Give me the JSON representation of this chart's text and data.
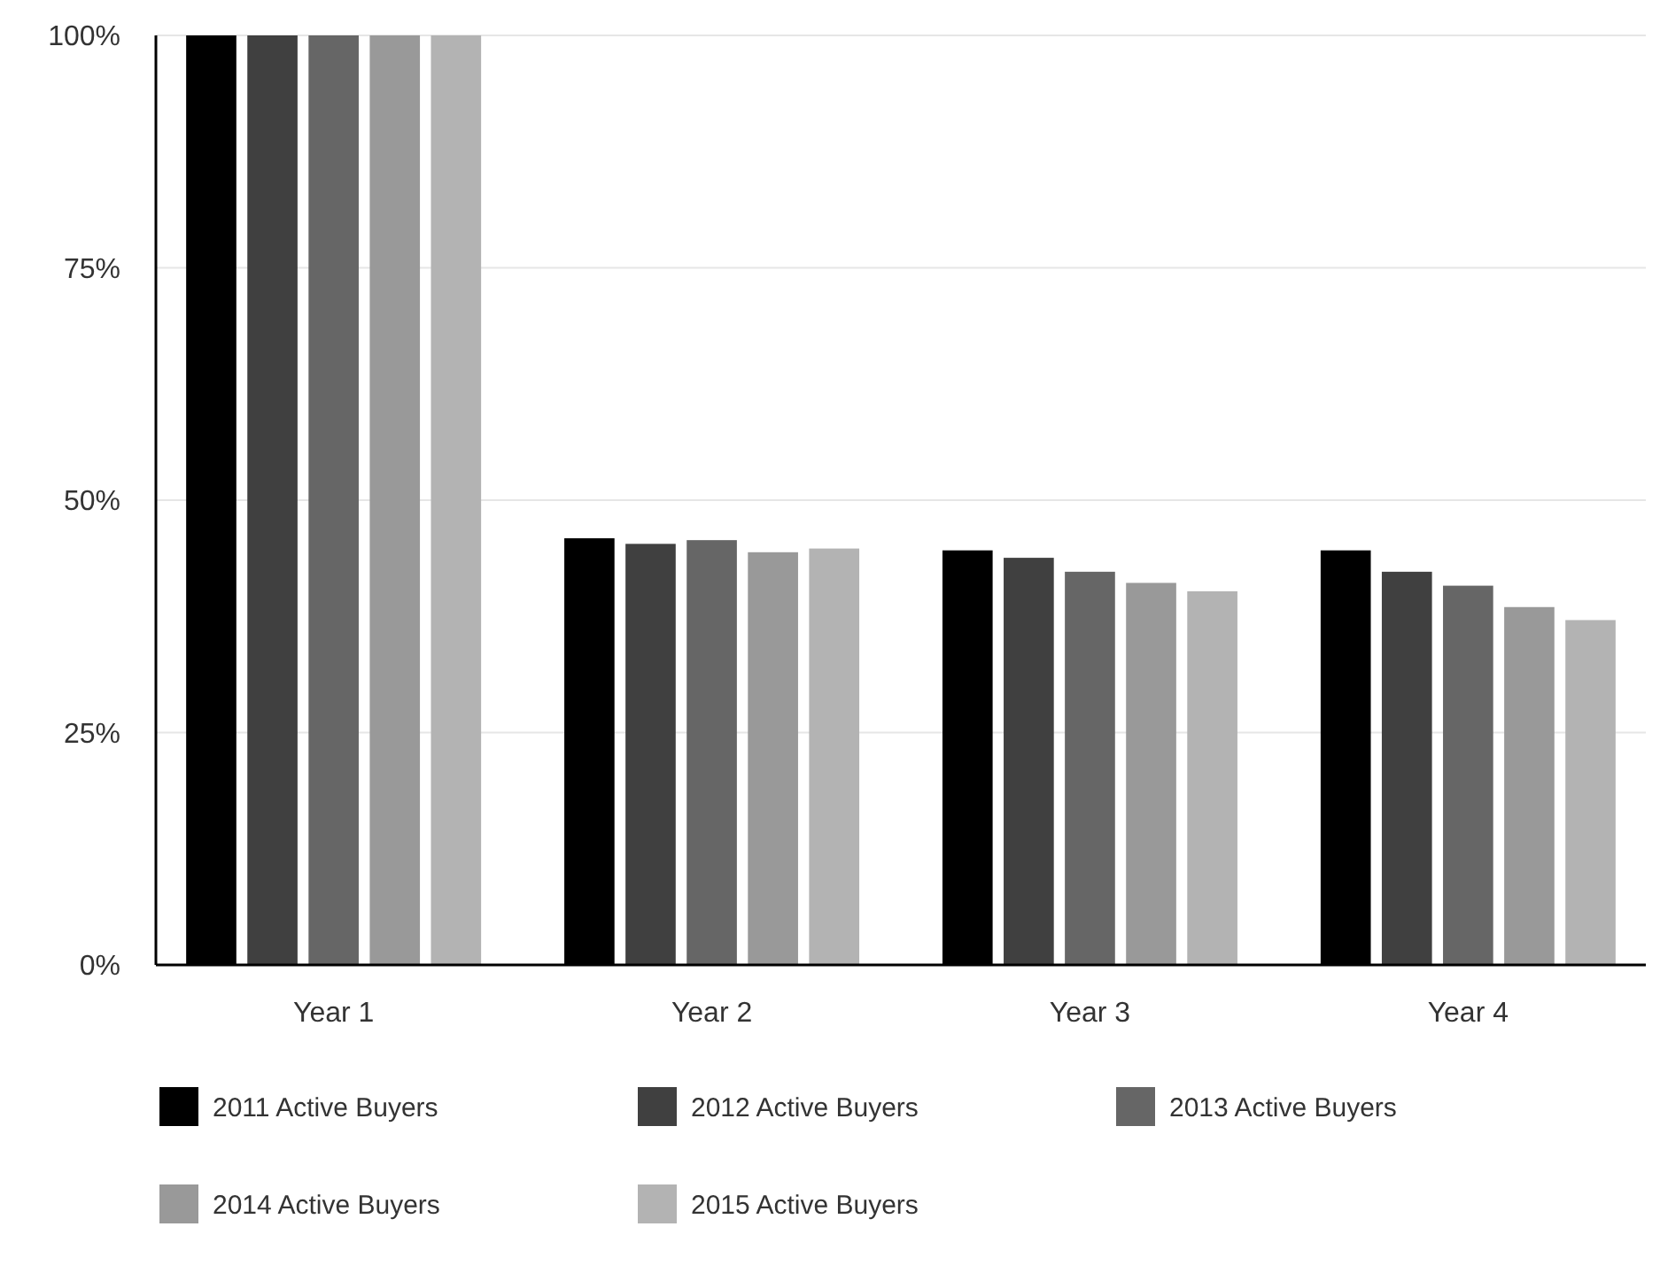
{
  "chart_data": {
    "type": "bar",
    "categories": [
      "Year 1",
      "Year 2",
      "Year 3",
      "Year 4"
    ],
    "series": [
      {
        "name": "2011 Active Buyers",
        "color": "#000000",
        "values": [
          100,
          45.9,
          44.6,
          44.6
        ]
      },
      {
        "name": "2012 Active Buyers",
        "color": "#404040",
        "values": [
          100,
          45.3,
          43.8,
          42.3
        ]
      },
      {
        "name": "2013 Active Buyers",
        "color": "#666666",
        "values": [
          100,
          45.7,
          42.3,
          40.8
        ]
      },
      {
        "name": "2014 Active Buyers",
        "color": "#999999",
        "values": [
          100,
          44.4,
          41.1,
          38.5
        ]
      },
      {
        "name": "2015 Active Buyers",
        "color": "#b3b3b3",
        "values": [
          100,
          44.8,
          40.2,
          37.1
        ]
      }
    ],
    "ylim": [
      0,
      100
    ],
    "yticks": [
      {
        "value": 0,
        "label": "0%"
      },
      {
        "value": 25,
        "label": "25%"
      },
      {
        "value": 50,
        "label": "50%"
      },
      {
        "value": 75,
        "label": "75%"
      },
      {
        "value": 100,
        "label": "100%"
      }
    ],
    "grid": "y",
    "legend": "bottom"
  }
}
